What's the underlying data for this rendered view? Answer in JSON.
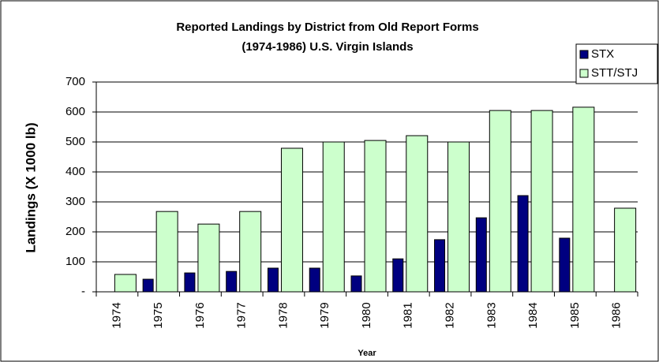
{
  "chart_data": {
    "type": "bar",
    "title": "Reported Landings by District from Old Report Forms",
    "subtitle": "(1974-1986) U.S. Virgin Islands",
    "x_label": "Year",
    "y_label": "Landings (X 1000 lb)",
    "categories": [
      "1974",
      "1975",
      "1976",
      "1977",
      "1978",
      "1979",
      "1980",
      "1981",
      "1982",
      "1983",
      "1984",
      "1985",
      "1986"
    ],
    "series": [
      {
        "name": "STX",
        "color": "#000080",
        "values": [
          0,
          42,
          63,
          68,
          79,
          79,
          53,
          110,
          174,
          247,
          321,
          179,
          0
        ]
      },
      {
        "name": "STT/STJ",
        "color": "#ccffcc",
        "values": [
          58,
          268,
          226,
          268,
          479,
          500,
          505,
          521,
          500,
          605,
          605,
          616,
          279
        ]
      }
    ],
    "ylim": [
      0,
      700
    ],
    "yticks": [
      {
        "value": 0,
        "label": "-"
      },
      100,
      200,
      300,
      400,
      500,
      600,
      700
    ],
    "grid": true,
    "legend": "top-right"
  }
}
